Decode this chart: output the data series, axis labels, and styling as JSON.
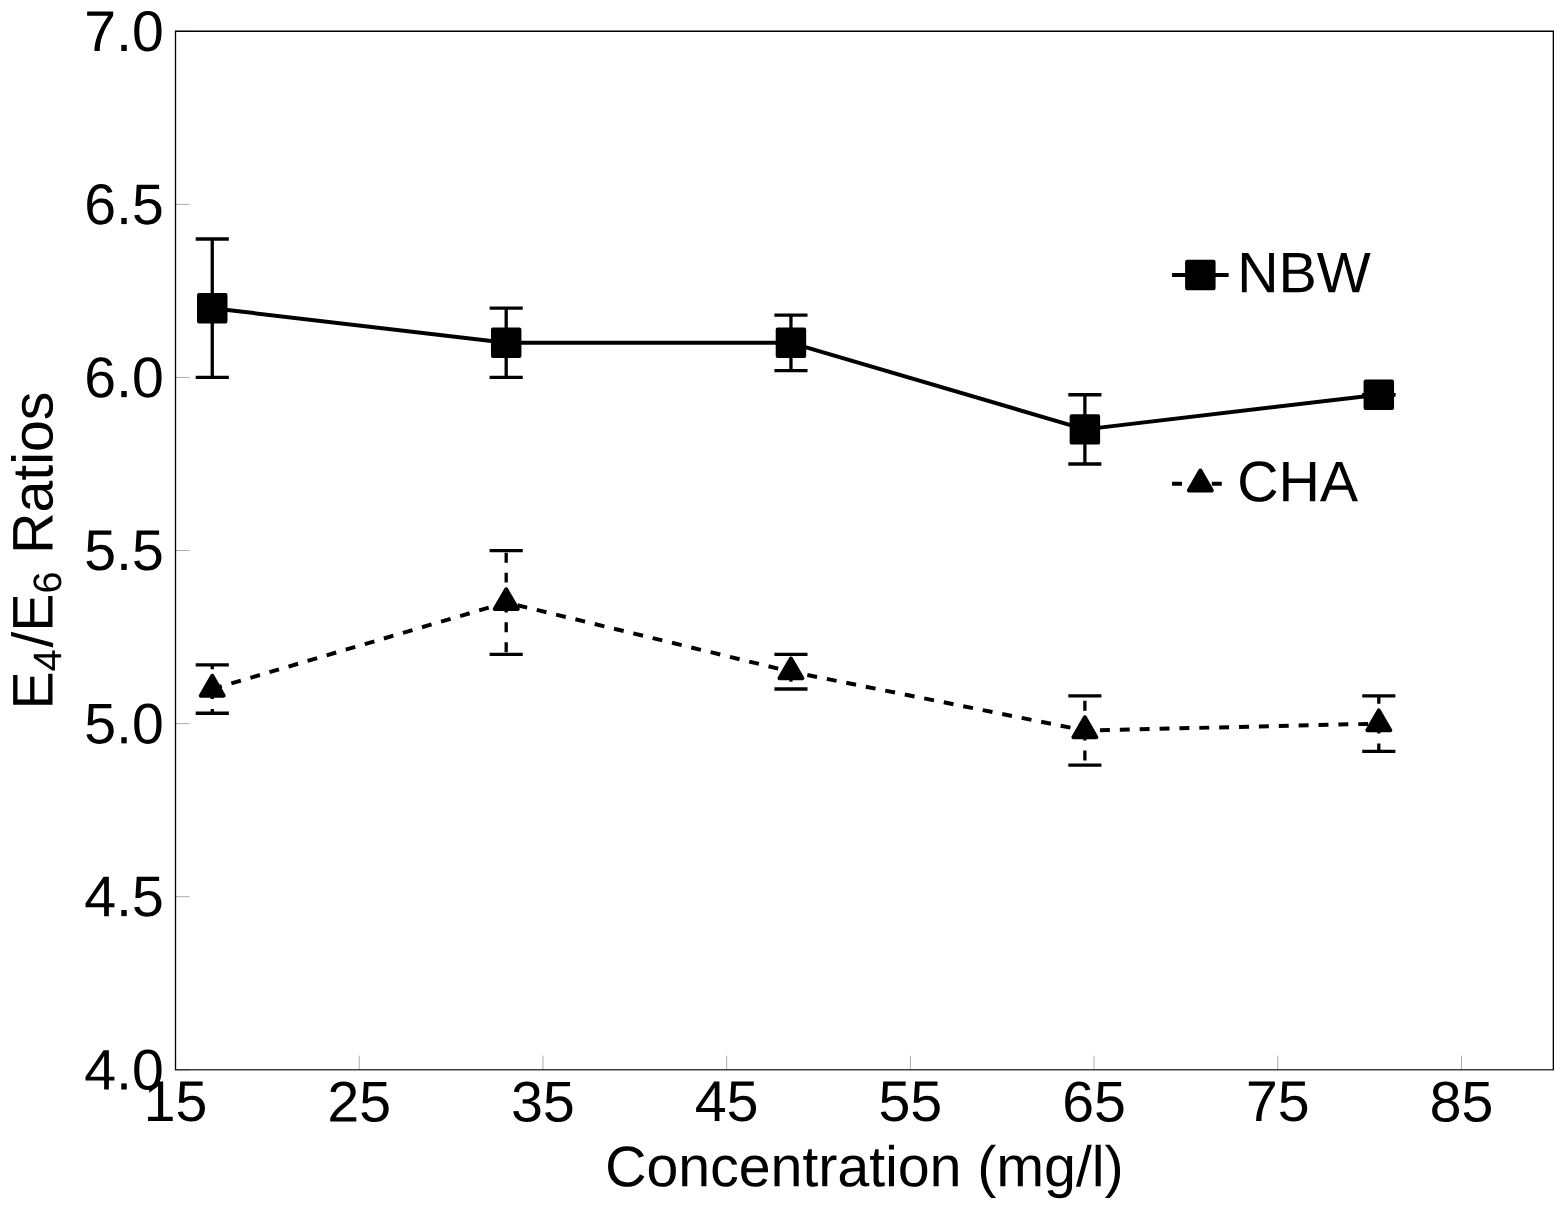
{
  "chart_data": {
    "type": "line",
    "xlabel": "Concentration (mg/l)",
    "ylabel": "E$_{4}$/E$_{6}$ Ratios",
    "xlim": [
      15,
      90
    ],
    "xticks": [
      15,
      25,
      35,
      45,
      55,
      65,
      75,
      85
    ],
    "ylim": [
      4.0,
      7.0
    ],
    "yticks": [
      {
        "value": 4.0,
        "label": "4.0"
      },
      {
        "value": 4.5,
        "label": "4.5"
      },
      {
        "value": 5.0,
        "label": "5.0"
      },
      {
        "value": 5.5,
        "label": "5.5"
      },
      {
        "value": 6.0,
        "label": "6.0"
      },
      {
        "value": 6.5,
        "label": "6.5"
      },
      {
        "value": 7.0,
        "label": "7.0"
      }
    ],
    "x": [
      17,
      33,
      48.5,
      64.5,
      80.5
    ],
    "series": [
      {
        "name": "NBW",
        "color": "#000000",
        "marker": "square",
        "line_style": "solid",
        "values": [
          6.2,
          6.1,
          6.1,
          5.85,
          5.95
        ],
        "errors": [
          0.2,
          0.1,
          0.08,
          0.1,
          null
        ]
      },
      {
        "name": "CHA",
        "color": "#000000",
        "marker": "triangle",
        "line_style": "dashed",
        "values": [
          5.1,
          5.35,
          5.15,
          4.98,
          5.0
        ],
        "errors": [
          0.07,
          0.15,
          0.05,
          0.1,
          0.08
        ]
      }
    ],
    "legend": "right",
    "grid": false
  }
}
